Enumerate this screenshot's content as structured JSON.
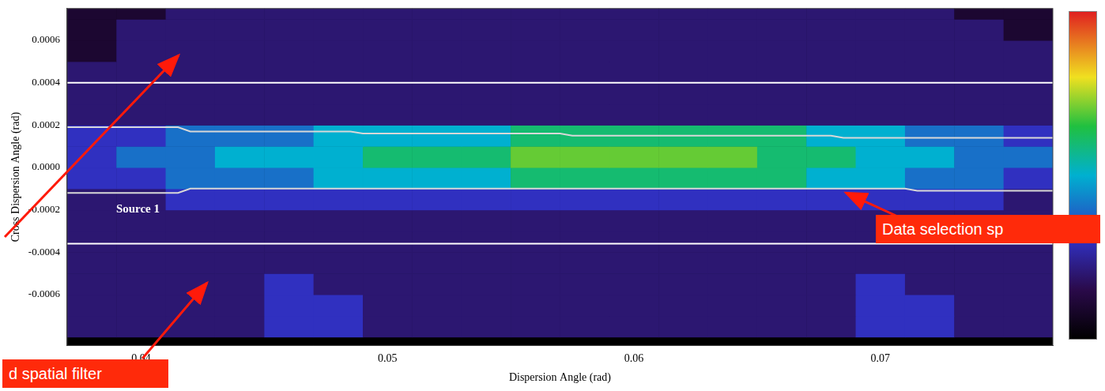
{
  "chart_data": {
    "type": "heatmap",
    "x_label": "Dispersion Angle (rad)",
    "y_label": "Cross Dispersion Angle (rad)",
    "xlim": [
      0.037,
      0.077
    ],
    "xticks": [
      0.04,
      0.05,
      0.06,
      0.07
    ],
    "ylim": [
      -0.00084,
      0.00075
    ],
    "yticks": [
      -0.0006,
      -0.0004,
      -0.0002,
      {
        "value": 0,
        "label": "0.0000"
      },
      0.0002,
      0.0004,
      0.0006
    ],
    "grid": false,
    "x_bins": [
      0.037,
      0.039,
      0.041,
      0.043,
      0.045,
      0.047,
      0.049,
      0.051,
      0.053,
      0.055,
      0.057,
      0.059,
      0.061,
      0.063,
      0.065,
      0.067,
      0.069,
      0.071,
      0.073,
      0.075,
      0.077
    ],
    "y_bins": [
      -0.0008,
      -0.0007,
      -0.0006,
      -0.0005,
      -0.0004,
      -0.0003,
      -0.0002,
      -0.0001,
      0,
      0.0001,
      0.0002,
      0.0003,
      0.0004,
      0.0005,
      0.0006,
      0.0007,
      0.0008
    ],
    "cells": [
      [
        2,
        2,
        2,
        2,
        3,
        3,
        2,
        2,
        2,
        2,
        2,
        2,
        2,
        2,
        2,
        2,
        3,
        3,
        2,
        2
      ],
      [
        2,
        2,
        2,
        2,
        3,
        3,
        2,
        2,
        2,
        2,
        2,
        2,
        2,
        2,
        2,
        2,
        3,
        3,
        2,
        2
      ],
      [
        2,
        2,
        2,
        2,
        3,
        2,
        2,
        2,
        2,
        2,
        2,
        2,
        2,
        2,
        2,
        2,
        3,
        2,
        2,
        2
      ],
      [
        2,
        2,
        2,
        2,
        2,
        2,
        2,
        2,
        2,
        2,
        2,
        2,
        2,
        2,
        2,
        2,
        2,
        2,
        2,
        2
      ],
      [
        2,
        2,
        2,
        2,
        2,
        2,
        2,
        2,
        2,
        2,
        2,
        2,
        2,
        2,
        2,
        2,
        2,
        2,
        2,
        2
      ],
      [
        2,
        2,
        2,
        2,
        2,
        2,
        2,
        2,
        2,
        2,
        2,
        2,
        2,
        2,
        2,
        2,
        2,
        2,
        2,
        2
      ],
      [
        2,
        2,
        3,
        3,
        3,
        3,
        3,
        3,
        3,
        3,
        3,
        3,
        3,
        3,
        3,
        3,
        3,
        3,
        3,
        2
      ],
      [
        3,
        3,
        4,
        4,
        4,
        5,
        5,
        5,
        5,
        6,
        6,
        6,
        6,
        6,
        6,
        5,
        5,
        4,
        4,
        3
      ],
      [
        3,
        4,
        4,
        5,
        5,
        5,
        6,
        6,
        6,
        7,
        7,
        7,
        7,
        7,
        6,
        6,
        5,
        5,
        4,
        4
      ],
      [
        3,
        3,
        4,
        4,
        4,
        5,
        5,
        5,
        5,
        6,
        6,
        6,
        6,
        6,
        6,
        5,
        5,
        4,
        4,
        3
      ],
      [
        2,
        2,
        2,
        2,
        2,
        2,
        2,
        2,
        2,
        2,
        2,
        2,
        2,
        2,
        2,
        2,
        2,
        2,
        2,
        2
      ],
      [
        2,
        2,
        2,
        2,
        2,
        2,
        2,
        2,
        2,
        2,
        2,
        2,
        2,
        2,
        2,
        2,
        2,
        2,
        2,
        2
      ],
      [
        2,
        2,
        2,
        2,
        2,
        2,
        2,
        2,
        2,
        2,
        2,
        2,
        2,
        2,
        2,
        2,
        2,
        2,
        2,
        2
      ],
      [
        1,
        2,
        2,
        2,
        2,
        2,
        2,
        2,
        2,
        2,
        2,
        2,
        2,
        2,
        2,
        2,
        2,
        2,
        2,
        2
      ],
      [
        1,
        2,
        2,
        2,
        2,
        2,
        2,
        2,
        2,
        2,
        2,
        2,
        2,
        2,
        2,
        2,
        2,
        2,
        2,
        1
      ],
      [
        1,
        1,
        2,
        2,
        2,
        2,
        2,
        2,
        2,
        2,
        2,
        2,
        2,
        2,
        2,
        2,
        2,
        2,
        1,
        1
      ]
    ],
    "colorbar": {
      "range": [
        0,
        10
      ]
    },
    "selection_upper": {
      "x": [
        0.037,
        0.0415,
        0.042,
        0.0485,
        0.049,
        0.057,
        0.0575,
        0.068,
        0.0685,
        0.077
      ],
      "y": [
        0.00019,
        0.00019,
        0.00017,
        0.00017,
        0.00016,
        0.00016,
        0.00015,
        0.00015,
        0.00014,
        0.00014
      ]
    },
    "selection_lower": {
      "x": [
        0.037,
        0.0415,
        0.042,
        0.071,
        0.0715,
        0.077
      ],
      "y": [
        -0.00012,
        -0.00012,
        -0.0001,
        -0.0001,
        -0.00011,
        -0.00011
      ]
    },
    "filter_lines": [
      0.0004,
      -0.00036
    ],
    "annotations": [
      "Source 1",
      "Data selection sp",
      "d spatial filter"
    ]
  }
}
